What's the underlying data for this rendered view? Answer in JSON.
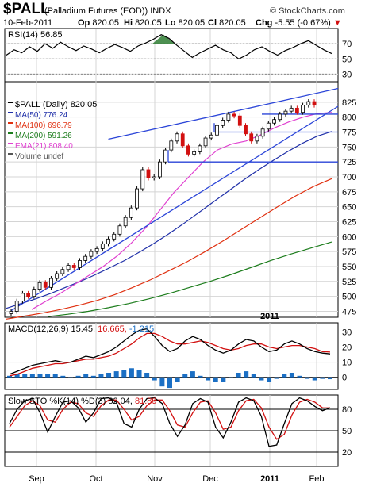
{
  "header": {
    "symbol": "$PALL",
    "name": "(Palladium Futures (EOD)) INDX",
    "copyright": "© StockCharts.com",
    "date": "10-Feb-2011",
    "quote": {
      "op_label": "Op",
      "op": "820.05",
      "hi_label": "Hi",
      "hi": "820.05",
      "lo_label": "Lo",
      "lo": "820.05",
      "cl_label": "Cl",
      "cl": "820.05",
      "chg_label": "Chg",
      "chg": "-5.55 (-0.67%)",
      "chg_arrow": "▼"
    }
  },
  "colors": {
    "price": "#000000",
    "ma50": "#1f2fa8",
    "ma100": "#e03010",
    "ma200": "#1d7d1d",
    "ema21": "#e040d0",
    "trendline": "#2b45d8",
    "hist": "#1b6fc4",
    "down": "#d21010",
    "grid": "#d4d4d4",
    "fill_rsi": "#2e7d32"
  },
  "chart_data": [
    {
      "type": "line",
      "panel": "RSI",
      "title": "RSI(14) 56.85",
      "series": [
        {
          "name": "RSI(14)",
          "last": 56.85,
          "values": [
            55,
            62,
            58,
            66,
            60,
            70,
            64,
            72,
            66,
            61,
            67,
            63,
            58,
            64,
            69,
            65,
            60,
            67,
            71,
            76,
            82,
            77,
            68,
            60,
            52,
            58,
            63,
            68,
            62,
            58,
            50,
            55,
            62,
            66,
            60,
            55,
            61,
            65,
            70,
            74,
            68,
            62,
            57
          ]
        }
      ],
      "levels": [
        70,
        50,
        30
      ],
      "yticks": [
        "70",
        "50",
        "30"
      ],
      "ylim": [
        20,
        90
      ]
    },
    {
      "type": "candlestick",
      "panel": "Price",
      "legend": [
        {
          "label": "$PALL (Daily)",
          "value": "820.05",
          "color": "#000000"
        },
        {
          "label": "MA(50)",
          "value": "776.24",
          "color": "#1f2fa8"
        },
        {
          "label": "MA(100)",
          "value": "696.79",
          "color": "#e03010"
        },
        {
          "label": "MA(200)",
          "value": "591.26",
          "color": "#1d7d1d"
        },
        {
          "label": "EMA(21)",
          "value": "808.40",
          "color": "#e040d0"
        },
        {
          "label": "Volume undef",
          "value": "",
          "color": "#555555"
        }
      ],
      "yticks": [
        475,
        500,
        525,
        550,
        575,
        600,
        625,
        650,
        675,
        700,
        725,
        750,
        775,
        800,
        825
      ],
      "ylim": [
        465,
        858
      ],
      "xticks": [
        "Sep",
        "Oct",
        "Nov",
        "Dec",
        "2011",
        "Feb"
      ],
      "close": [
        475,
        492,
        505,
        500,
        512,
        523,
        515,
        530,
        538,
        545,
        552,
        548,
        560,
        567,
        575,
        580,
        588,
        596,
        604,
        618,
        632,
        648,
        680,
        712,
        698,
        700,
        725,
        745,
        760,
        772,
        752,
        738,
        742,
        752,
        765,
        770,
        786,
        795,
        805,
        802,
        786,
        772,
        760,
        768,
        780,
        790,
        796,
        805,
        810,
        815,
        808,
        820,
        826,
        820
      ],
      "ma": {
        "MA(50)": [
          480,
          488,
          496,
          505,
          515,
          525,
          536,
          548,
          560,
          574,
          589,
          605,
          622,
          640,
          658,
          676,
          694,
          711,
          727,
          742,
          756,
          768,
          776
        ],
        "MA(100)": [
          462,
          467,
          472,
          478,
          485,
          493,
          503,
          515,
          528,
          543,
          558,
          575,
          593,
          612,
          631,
          650,
          668,
          684,
          697
        ],
        "MA(200)": [
          466,
          470,
          475,
          481,
          488,
          496,
          505,
          515,
          525,
          536,
          548,
          560,
          571,
          581,
          591
        ],
        "EMA(21)": [
          478,
          492,
          505,
          520,
          535,
          550,
          568,
          590,
          615,
          645,
          675,
          700,
          725,
          745,
          755,
          760,
          770,
          782,
          792,
          800,
          806,
          808
        ]
      },
      "trendlines": {
        "channel_lower": [
          [
            0,
            476
          ],
          [
            53,
            812
          ]
        ],
        "channel_upper": [
          [
            17,
            745
          ],
          [
            53,
            848
          ]
        ],
        "support_725": 725,
        "resistance_775": 775,
        "resistance_805": 805
      }
    },
    {
      "type": "line",
      "panel": "MACD",
      "title": "MACD(12,26,9) 15.450, 16.665, -1.215",
      "series": [
        {
          "name": "MACD(12,26,9)",
          "last": 15.45,
          "values": [
            2,
            4,
            6,
            8,
            9,
            10,
            11,
            10,
            10,
            12,
            14,
            13,
            15,
            17,
            20,
            24,
            28,
            31,
            32,
            27,
            21,
            17,
            19,
            24,
            27,
            25,
            21,
            18,
            16,
            18,
            22,
            25,
            24,
            20,
            17,
            18,
            22,
            24,
            22,
            19,
            17,
            16,
            15.45
          ]
        },
        {
          "name": "Signal",
          "last": 16.665,
          "values": [
            1,
            2,
            4,
            6,
            7,
            8,
            9,
            9,
            10,
            11,
            12,
            12,
            13,
            14,
            16,
            19,
            22,
            26,
            29,
            29,
            27,
            24,
            22,
            22,
            23,
            24,
            23,
            21,
            19,
            18,
            19,
            21,
            22,
            22,
            20,
            19,
            20,
            21,
            21,
            20,
            19,
            17,
            16.665
          ]
        },
        {
          "name": "Hist",
          "last": -1.215,
          "values": [
            1,
            2,
            2,
            2,
            2,
            2,
            2,
            1,
            0,
            1,
            2,
            1,
            2,
            3,
            4,
            5,
            6,
            5,
            3,
            -2,
            -6,
            -7,
            -3,
            2,
            4,
            1,
            -2,
            -3,
            -3,
            0,
            3,
            4,
            2,
            -2,
            -3,
            -1,
            2,
            3,
            1,
            -1,
            -2,
            -1,
            -1.215
          ]
        }
      ],
      "yticks": [
        "30",
        "20",
        "10",
        "0"
      ],
      "ylim": [
        -8,
        36
      ]
    },
    {
      "type": "line",
      "panel": "Slow STO",
      "title": "Slow STO %K(14) %D(3) 82.04, 81.89",
      "series": [
        {
          "name": "%K(14)",
          "last": 82.04,
          "values": [
            60,
            80,
            92,
            95,
            75,
            48,
            70,
            90,
            92,
            82,
            62,
            75,
            95,
            96,
            90,
            60,
            55,
            80,
            95,
            96,
            88,
            60,
            42,
            58,
            88,
            95,
            90,
            55,
            40,
            62,
            90,
            96,
            92,
            70,
            28,
            30,
            60,
            88,
            96,
            92,
            84,
            78,
            82.04
          ]
        },
        {
          "name": "%D(3)",
          "last": 81.89,
          "values": [
            55,
            70,
            85,
            92,
            85,
            65,
            62,
            80,
            90,
            88,
            75,
            70,
            85,
            93,
            93,
            80,
            65,
            70,
            85,
            93,
            93,
            78,
            58,
            55,
            75,
            90,
            92,
            75,
            52,
            55,
            78,
            92,
            94,
            82,
            55,
            38,
            45,
            72,
            90,
            94,
            90,
            82,
            81.89
          ]
        }
      ],
      "levels": [
        80,
        50,
        20
      ],
      "yticks": [
        "80",
        "50",
        "20"
      ],
      "ylim": [
        0,
        100
      ]
    }
  ]
}
